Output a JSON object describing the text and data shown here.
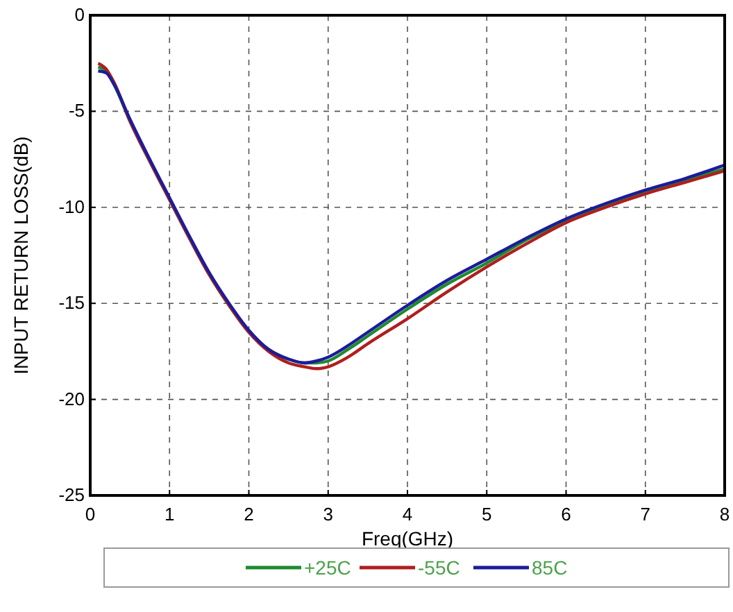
{
  "chart_data": {
    "type": "line",
    "xlabel": "Freq(GHz)",
    "ylabel": "INPUT RETURN LOSS(dB)",
    "xlim": [
      0,
      8
    ],
    "ylim": [
      -25,
      0
    ],
    "xticks": [
      0,
      1,
      2,
      3,
      4,
      5,
      6,
      7,
      8
    ],
    "yticks": [
      -25,
      -20,
      -15,
      -10,
      -5,
      0
    ],
    "grid": true,
    "legend": "bottom",
    "line_style": "solid",
    "x": [
      0.1,
      0.2,
      0.3,
      0.5,
      0.75,
      1,
      1.25,
      1.5,
      1.75,
      2,
      2.25,
      2.5,
      2.7,
      2.85,
      3,
      3.25,
      3.5,
      4,
      4.5,
      5,
      5.5,
      6,
      6.5,
      7,
      7.5,
      8
    ],
    "series": [
      {
        "name": "+25C",
        "color": "#1e8a2e",
        "values": [
          -2.7,
          -2.9,
          -3.6,
          -5.5,
          -7.6,
          -9.6,
          -11.6,
          -13.5,
          -15.1,
          -16.5,
          -17.4,
          -17.9,
          -18.1,
          -18.1,
          -18.0,
          -17.4,
          -16.7,
          -15.3,
          -14.0,
          -12.9,
          -11.7,
          -10.7,
          -9.9,
          -9.2,
          -8.6,
          -8.0
        ]
      },
      {
        "name": "-55C",
        "color": "#b01e1e",
        "values": [
          -2.5,
          -2.8,
          -3.5,
          -5.5,
          -7.6,
          -9.6,
          -11.6,
          -13.5,
          -15.1,
          -16.5,
          -17.5,
          -18.1,
          -18.3,
          -18.4,
          -18.3,
          -17.8,
          -17.1,
          -15.8,
          -14.4,
          -13.1,
          -11.9,
          -10.8,
          -10.0,
          -9.3,
          -8.7,
          -8.1
        ]
      },
      {
        "name": "85C",
        "color": "#1c1c9a",
        "values": [
          -2.9,
          -3.0,
          -3.6,
          -5.4,
          -7.5,
          -9.5,
          -11.5,
          -13.4,
          -15.0,
          -16.4,
          -17.4,
          -17.9,
          -18.1,
          -18.0,
          -17.8,
          -17.2,
          -16.5,
          -15.1,
          -13.8,
          -12.7,
          -11.6,
          -10.6,
          -9.8,
          -9.1,
          -8.5,
          -7.8
        ]
      }
    ]
  }
}
